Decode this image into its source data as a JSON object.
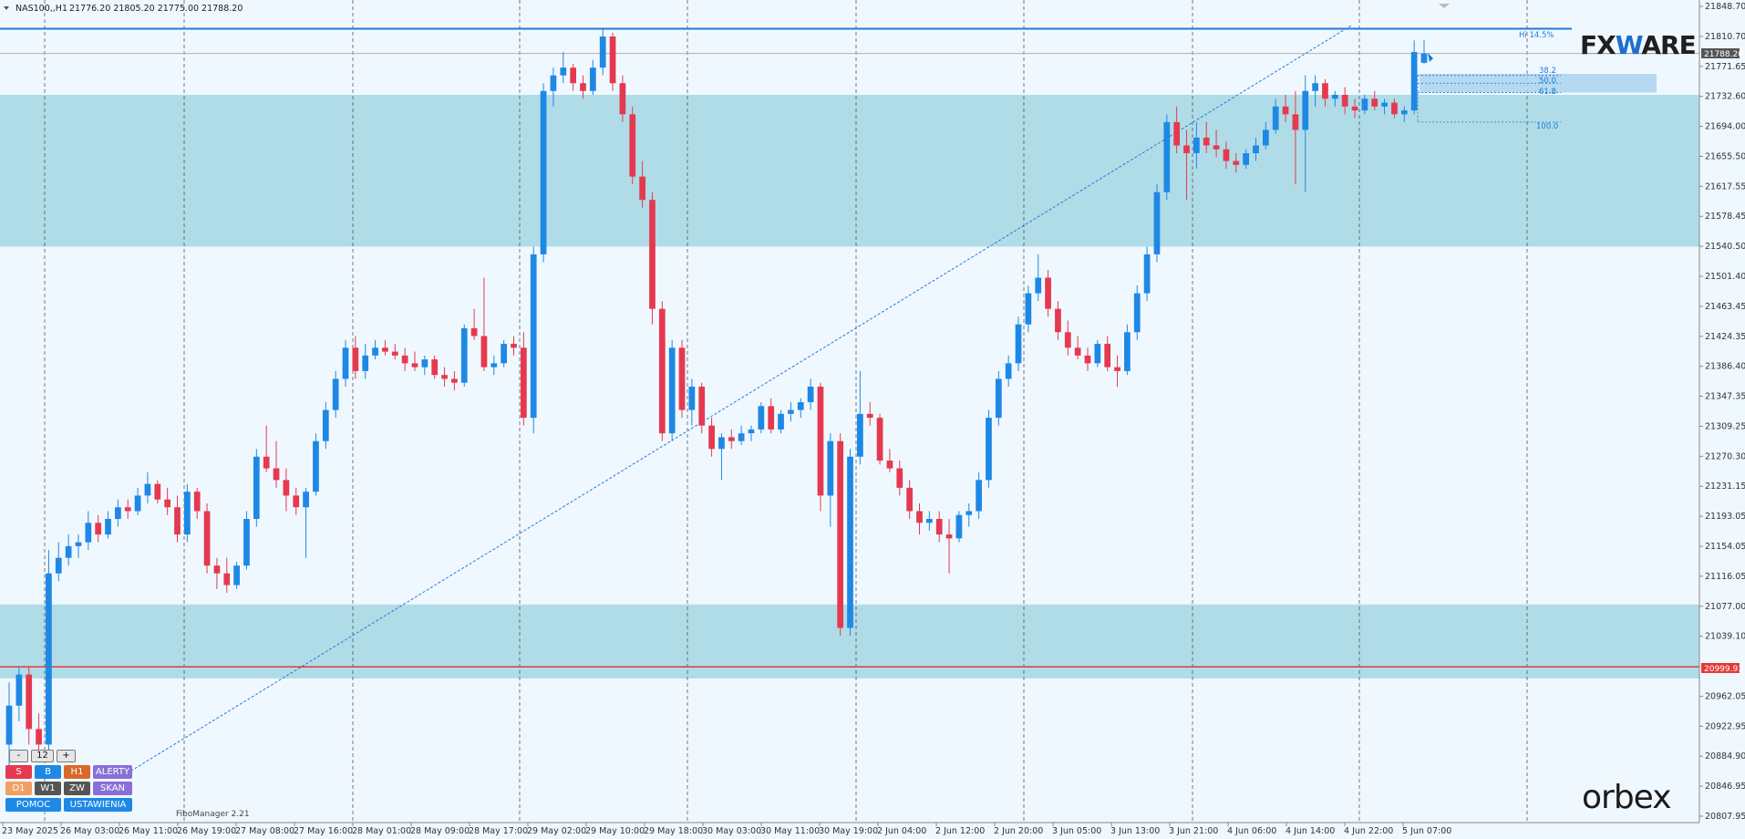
{
  "header": {
    "symbol": "NAS100,,H1",
    "ohlc": "21776.20 21805.20 21775.00 21788.20"
  },
  "price_axis": {
    "labels": [
      "21848.70",
      "21810.70",
      "21771.65",
      "21732.60",
      "21694.00",
      "21655.50",
      "21617.55",
      "21578.45",
      "21540.50",
      "21501.40",
      "21463.45",
      "21424.35",
      "21386.40",
      "21347.35",
      "21309.25",
      "21270.30",
      "21231.15",
      "21193.05",
      "21154.05",
      "21116.05",
      "21077.00",
      "21039.10",
      "20999.93",
      "20962.05",
      "20922.95",
      "20884.90",
      "20846.95",
      "20807.95"
    ],
    "current_price": "21788.20",
    "support_price": "20999.93"
  },
  "time_axis": {
    "labels": [
      "23 May 2025",
      "26 May 03:00",
      "26 May 11:00",
      "26 May 19:00",
      "27 May 08:00",
      "27 May 16:00",
      "28 May 01:00",
      "28 May 09:00",
      "28 May 17:00",
      "29 May 02:00",
      "29 May 10:00",
      "29 May 18:00",
      "30 May 03:00",
      "30 May 11:00",
      "30 May 19:00",
      "2 Jun 04:00",
      "2 Jun 12:00",
      "2 Jun 20:00",
      "3 Jun 05:00",
      "3 Jun 13:00",
      "3 Jun 21:00",
      "4 Jun 06:00",
      "4 Jun 14:00",
      "4 Jun 22:00",
      "5 Jun 07:00"
    ]
  },
  "fibo": {
    "levels": [
      "38.2",
      "50.0",
      "61.8",
      "100.0"
    ],
    "high_label": "Hi 14.5%"
  },
  "panel": {
    "minus": "-",
    "period_value": "12",
    "plus": "+",
    "btn_s": "S",
    "btn_b": "B",
    "btn_h1": "H1",
    "btn_alerty": "ALERTY",
    "btn_d1": "D1",
    "btn_w1": "W1",
    "btn_zw": "ZW",
    "btn_skan": "SKAN",
    "btn_pomoc": "POMOC",
    "btn_ustawienia": "USTAWIENIA"
  },
  "fibo_manager_label": "FiboManager 2.21",
  "logos": {
    "fxware_left": "FX",
    "fxware_mid": "W",
    "fxware_right": "ARE",
    "orbex": "orbex"
  },
  "colors": {
    "background": "#f0f8ff",
    "bull": "#1e88e5",
    "bear": "#e53950",
    "zone": "#a9d8e6",
    "resistance_line": "#1e7bd6",
    "support_line": "#e53935",
    "grid": "#333333"
  },
  "chart_data": {
    "type": "candlestick",
    "instrument": "NAS100",
    "timeframe": "H1",
    "price_range": [
      20807.95,
      21848.7
    ],
    "horizontal_lines": {
      "resistance": 21820,
      "current": 21788.2,
      "support": 20999.93
    },
    "zones": [
      [
        21540,
        21735
      ],
      [
        20985,
        21080
      ]
    ],
    "trendline": {
      "from_price": 20860,
      "to_price": 21824
    },
    "fib_levels": {
      "38.2": 21760,
      "50.0": 21750,
      "61.8": 21738,
      "100.0": 21700
    },
    "candles": [
      {
        "open": 20900,
        "high": 20980,
        "low": 20860,
        "close": 20950
      },
      {
        "open": 20950,
        "high": 21000,
        "low": 20930,
        "close": 20990
      },
      {
        "open": 20990,
        "high": 21000,
        "low": 20900,
        "close": 20920
      },
      {
        "open": 20920,
        "high": 20940,
        "low": 20890,
        "close": 20900
      },
      {
        "open": 20900,
        "high": 21150,
        "low": 20890,
        "close": 21120
      },
      {
        "open": 21120,
        "high": 21160,
        "low": 21110,
        "close": 21140
      },
      {
        "open": 21140,
        "high": 21170,
        "low": 21130,
        "close": 21155
      },
      {
        "open": 21155,
        "high": 21170,
        "low": 21140,
        "close": 21160
      },
      {
        "open": 21160,
        "high": 21200,
        "low": 21150,
        "close": 21185
      },
      {
        "open": 21185,
        "high": 21195,
        "low": 21160,
        "close": 21170
      },
      {
        "open": 21170,
        "high": 21200,
        "low": 21165,
        "close": 21190
      },
      {
        "open": 21190,
        "high": 21215,
        "low": 21180,
        "close": 21205
      },
      {
        "open": 21205,
        "high": 21215,
        "low": 21190,
        "close": 21200
      },
      {
        "open": 21200,
        "high": 21230,
        "low": 21195,
        "close": 21220
      },
      {
        "open": 21220,
        "high": 21250,
        "low": 21210,
        "close": 21235
      },
      {
        "open": 21235,
        "high": 21240,
        "low": 21210,
        "close": 21215
      },
      {
        "open": 21215,
        "high": 21230,
        "low": 21195,
        "close": 21205
      },
      {
        "open": 21205,
        "high": 21220,
        "low": 21160,
        "close": 21170
      },
      {
        "open": 21170,
        "high": 21235,
        "low": 21160,
        "close": 21225
      },
      {
        "open": 21225,
        "high": 21230,
        "low": 21190,
        "close": 21200
      },
      {
        "open": 21200,
        "high": 21210,
        "low": 21120,
        "close": 21130
      },
      {
        "open": 21130,
        "high": 21140,
        "low": 21100,
        "close": 21120
      },
      {
        "open": 21120,
        "high": 21140,
        "low": 21095,
        "close": 21105
      },
      {
        "open": 21105,
        "high": 21135,
        "low": 21100,
        "close": 21130
      },
      {
        "open": 21130,
        "high": 21200,
        "low": 21125,
        "close": 21190
      },
      {
        "open": 21190,
        "high": 21280,
        "low": 21180,
        "close": 21270
      },
      {
        "open": 21270,
        "high": 21310,
        "low": 21250,
        "close": 21255
      },
      {
        "open": 21255,
        "high": 21290,
        "low": 21230,
        "close": 21240
      },
      {
        "open": 21240,
        "high": 21255,
        "low": 21200,
        "close": 21220
      },
      {
        "open": 21220,
        "high": 21230,
        "low": 21195,
        "close": 21205
      },
      {
        "open": 21205,
        "high": 21230,
        "low": 21140,
        "close": 21225
      },
      {
        "open": 21225,
        "high": 21300,
        "low": 21220,
        "close": 21290
      },
      {
        "open": 21290,
        "high": 21340,
        "low": 21280,
        "close": 21330
      },
      {
        "open": 21330,
        "high": 21380,
        "low": 21320,
        "close": 21370
      },
      {
        "open": 21370,
        "high": 21420,
        "low": 21360,
        "close": 21410
      },
      {
        "open": 21410,
        "high": 21425,
        "low": 21370,
        "close": 21380
      },
      {
        "open": 21380,
        "high": 21415,
        "low": 21370,
        "close": 21400
      },
      {
        "open": 21400,
        "high": 21420,
        "low": 21395,
        "close": 21410
      },
      {
        "open": 21410,
        "high": 21420,
        "low": 21400,
        "close": 21405
      },
      {
        "open": 21405,
        "high": 21415,
        "low": 21395,
        "close": 21400
      },
      {
        "open": 21400,
        "high": 21410,
        "low": 21380,
        "close": 21390
      },
      {
        "open": 21390,
        "high": 21405,
        "low": 21380,
        "close": 21385
      },
      {
        "open": 21385,
        "high": 21400,
        "low": 21375,
        "close": 21395
      },
      {
        "open": 21395,
        "high": 21400,
        "low": 21370,
        "close": 21375
      },
      {
        "open": 21375,
        "high": 21385,
        "low": 21360,
        "close": 21370
      },
      {
        "open": 21370,
        "high": 21380,
        "low": 21355,
        "close": 21365
      },
      {
        "open": 21365,
        "high": 21440,
        "low": 21360,
        "close": 21435
      },
      {
        "open": 21435,
        "high": 21460,
        "low": 21420,
        "close": 21425
      },
      {
        "open": 21425,
        "high": 21500,
        "low": 21380,
        "close": 21385
      },
      {
        "open": 21385,
        "high": 21400,
        "low": 21375,
        "close": 21390
      },
      {
        "open": 21390,
        "high": 21420,
        "low": 21385,
        "close": 21415
      },
      {
        "open": 21415,
        "high": 21425,
        "low": 21400,
        "close": 21410
      },
      {
        "open": 21410,
        "high": 21430,
        "low": 21310,
        "close": 21320
      },
      {
        "open": 21320,
        "high": 21540,
        "low": 21300,
        "close": 21530
      },
      {
        "open": 21530,
        "high": 21750,
        "low": 21520,
        "close": 21740
      },
      {
        "open": 21740,
        "high": 21770,
        "low": 21720,
        "close": 21760
      },
      {
        "open": 21760,
        "high": 21790,
        "low": 21750,
        "close": 21770
      },
      {
        "open": 21770,
        "high": 21775,
        "low": 21740,
        "close": 21750
      },
      {
        "open": 21750,
        "high": 21760,
        "low": 21730,
        "close": 21740
      },
      {
        "open": 21740,
        "high": 21780,
        "low": 21735,
        "close": 21770
      },
      {
        "open": 21770,
        "high": 21820,
        "low": 21760,
        "close": 21810
      },
      {
        "open": 21810,
        "high": 21815,
        "low": 21740,
        "close": 21750
      },
      {
        "open": 21750,
        "high": 21760,
        "low": 21700,
        "close": 21710
      },
      {
        "open": 21710,
        "high": 21720,
        "low": 21620,
        "close": 21630
      },
      {
        "open": 21630,
        "high": 21650,
        "low": 21590,
        "close": 21600
      },
      {
        "open": 21600,
        "high": 21610,
        "low": 21440,
        "close": 21460
      },
      {
        "open": 21460,
        "high": 21470,
        "low": 21290,
        "close": 21300
      },
      {
        "open": 21300,
        "high": 21420,
        "low": 21290,
        "close": 21410
      },
      {
        "open": 21410,
        "high": 21420,
        "low": 21320,
        "close": 21330
      },
      {
        "open": 21330,
        "high": 21370,
        "low": 21310,
        "close": 21360
      },
      {
        "open": 21360,
        "high": 21365,
        "low": 21300,
        "close": 21310
      },
      {
        "open": 21310,
        "high": 21320,
        "low": 21270,
        "close": 21280
      },
      {
        "open": 21280,
        "high": 21300,
        "low": 21240,
        "close": 21295
      },
      {
        "open": 21295,
        "high": 21305,
        "low": 21280,
        "close": 21290
      },
      {
        "open": 21290,
        "high": 21310,
        "low": 21285,
        "close": 21300
      },
      {
        "open": 21300,
        "high": 21310,
        "low": 21290,
        "close": 21305
      },
      {
        "open": 21305,
        "high": 21340,
        "low": 21300,
        "close": 21335
      },
      {
        "open": 21335,
        "high": 21345,
        "low": 21300,
        "close": 21305
      },
      {
        "open": 21305,
        "high": 21330,
        "low": 21300,
        "close": 21325
      },
      {
        "open": 21325,
        "high": 21340,
        "low": 21315,
        "close": 21330
      },
      {
        "open": 21330,
        "high": 21345,
        "low": 21320,
        "close": 21340
      },
      {
        "open": 21340,
        "high": 21370,
        "low": 21330,
        "close": 21360
      },
      {
        "open": 21360,
        "high": 21365,
        "low": 21200,
        "close": 21220
      },
      {
        "open": 21220,
        "high": 21300,
        "low": 21180,
        "close": 21290
      },
      {
        "open": 21290,
        "high": 21300,
        "low": 21040,
        "close": 21050
      },
      {
        "open": 21050,
        "high": 21280,
        "low": 21040,
        "close": 21270
      },
      {
        "open": 21270,
        "high": 21380,
        "low": 21260,
        "close": 21325
      },
      {
        "open": 21325,
        "high": 21340,
        "low": 21310,
        "close": 21320
      },
      {
        "open": 21320,
        "high": 21325,
        "low": 21260,
        "close": 21265
      },
      {
        "open": 21265,
        "high": 21280,
        "low": 21250,
        "close": 21255
      },
      {
        "open": 21255,
        "high": 21265,
        "low": 21220,
        "close": 21230
      },
      {
        "open": 21230,
        "high": 21240,
        "low": 21190,
        "close": 21200
      },
      {
        "open": 21200,
        "high": 21210,
        "low": 21170,
        "close": 21185
      },
      {
        "open": 21185,
        "high": 21200,
        "low": 21175,
        "close": 21190
      },
      {
        "open": 21190,
        "high": 21200,
        "low": 21160,
        "close": 21170
      },
      {
        "open": 21170,
        "high": 21190,
        "low": 21120,
        "close": 21165
      },
      {
        "open": 21165,
        "high": 21200,
        "low": 21160,
        "close": 21195
      },
      {
        "open": 21195,
        "high": 21210,
        "low": 21180,
        "close": 21200
      },
      {
        "open": 21200,
        "high": 21250,
        "low": 21190,
        "close": 21240
      },
      {
        "open": 21240,
        "high": 21330,
        "low": 21230,
        "close": 21320
      },
      {
        "open": 21320,
        "high": 21380,
        "low": 21310,
        "close": 21370
      },
      {
        "open": 21370,
        "high": 21400,
        "low": 21360,
        "close": 21390
      },
      {
        "open": 21390,
        "high": 21450,
        "low": 21380,
        "close": 21440
      },
      {
        "open": 21440,
        "high": 21490,
        "low": 21430,
        "close": 21480
      },
      {
        "open": 21480,
        "high": 21530,
        "low": 21470,
        "close": 21500
      },
      {
        "open": 21500,
        "high": 21510,
        "low": 21450,
        "close": 21460
      },
      {
        "open": 21460,
        "high": 21470,
        "low": 21420,
        "close": 21430
      },
      {
        "open": 21430,
        "high": 21445,
        "low": 21400,
        "close": 21410
      },
      {
        "open": 21410,
        "high": 21425,
        "low": 21395,
        "close": 21400
      },
      {
        "open": 21400,
        "high": 21410,
        "low": 21380,
        "close": 21390
      },
      {
        "open": 21390,
        "high": 21420,
        "low": 21385,
        "close": 21415
      },
      {
        "open": 21415,
        "high": 21425,
        "low": 21380,
        "close": 21385
      },
      {
        "open": 21385,
        "high": 21400,
        "low": 21360,
        "close": 21380
      },
      {
        "open": 21380,
        "high": 21440,
        "low": 21375,
        "close": 21430
      },
      {
        "open": 21430,
        "high": 21490,
        "low": 21420,
        "close": 21480
      },
      {
        "open": 21480,
        "high": 21540,
        "low": 21470,
        "close": 21530
      },
      {
        "open": 21530,
        "high": 21620,
        "low": 21520,
        "close": 21610
      },
      {
        "open": 21610,
        "high": 21710,
        "low": 21600,
        "close": 21700
      },
      {
        "open": 21700,
        "high": 21720,
        "low": 21660,
        "close": 21670
      },
      {
        "open": 21670,
        "high": 21690,
        "low": 21600,
        "close": 21660
      },
      {
        "open": 21660,
        "high": 21700,
        "low": 21640,
        "close": 21680
      },
      {
        "open": 21680,
        "high": 21700,
        "low": 21660,
        "close": 21670
      },
      {
        "open": 21670,
        "high": 21690,
        "low": 21655,
        "close": 21665
      },
      {
        "open": 21665,
        "high": 21675,
        "low": 21640,
        "close": 21650
      },
      {
        "open": 21650,
        "high": 21660,
        "low": 21635,
        "close": 21645
      },
      {
        "open": 21645,
        "high": 21665,
        "low": 21640,
        "close": 21660
      },
      {
        "open": 21660,
        "high": 21680,
        "low": 21650,
        "close": 21670
      },
      {
        "open": 21670,
        "high": 21700,
        "low": 21665,
        "close": 21690
      },
      {
        "open": 21690,
        "high": 21730,
        "low": 21685,
        "close": 21720
      },
      {
        "open": 21720,
        "high": 21735,
        "low": 21700,
        "close": 21710
      },
      {
        "open": 21710,
        "high": 21740,
        "low": 21620,
        "close": 21690
      },
      {
        "open": 21690,
        "high": 21760,
        "low": 21610,
        "close": 21740
      },
      {
        "open": 21740,
        "high": 21760,
        "low": 21720,
        "close": 21750
      },
      {
        "open": 21750,
        "high": 21755,
        "low": 21720,
        "close": 21730
      },
      {
        "open": 21730,
        "high": 21740,
        "low": 21720,
        "close": 21735
      },
      {
        "open": 21735,
        "high": 21745,
        "low": 21710,
        "close": 21720
      },
      {
        "open": 21720,
        "high": 21730,
        "low": 21705,
        "close": 21715
      },
      {
        "open": 21715,
        "high": 21735,
        "low": 21710,
        "close": 21730
      },
      {
        "open": 21730,
        "high": 21740,
        "low": 21715,
        "close": 21720
      },
      {
        "open": 21720,
        "high": 21730,
        "low": 21710,
        "close": 21725
      },
      {
        "open": 21725,
        "high": 21730,
        "low": 21705,
        "close": 21710
      },
      {
        "open": 21710,
        "high": 21720,
        "low": 21700,
        "close": 21715
      },
      {
        "open": 21715,
        "high": 21805,
        "low": 21710,
        "close": 21790
      },
      {
        "open": 21776.2,
        "high": 21805.2,
        "low": 21775,
        "close": 21788.2
      }
    ]
  }
}
